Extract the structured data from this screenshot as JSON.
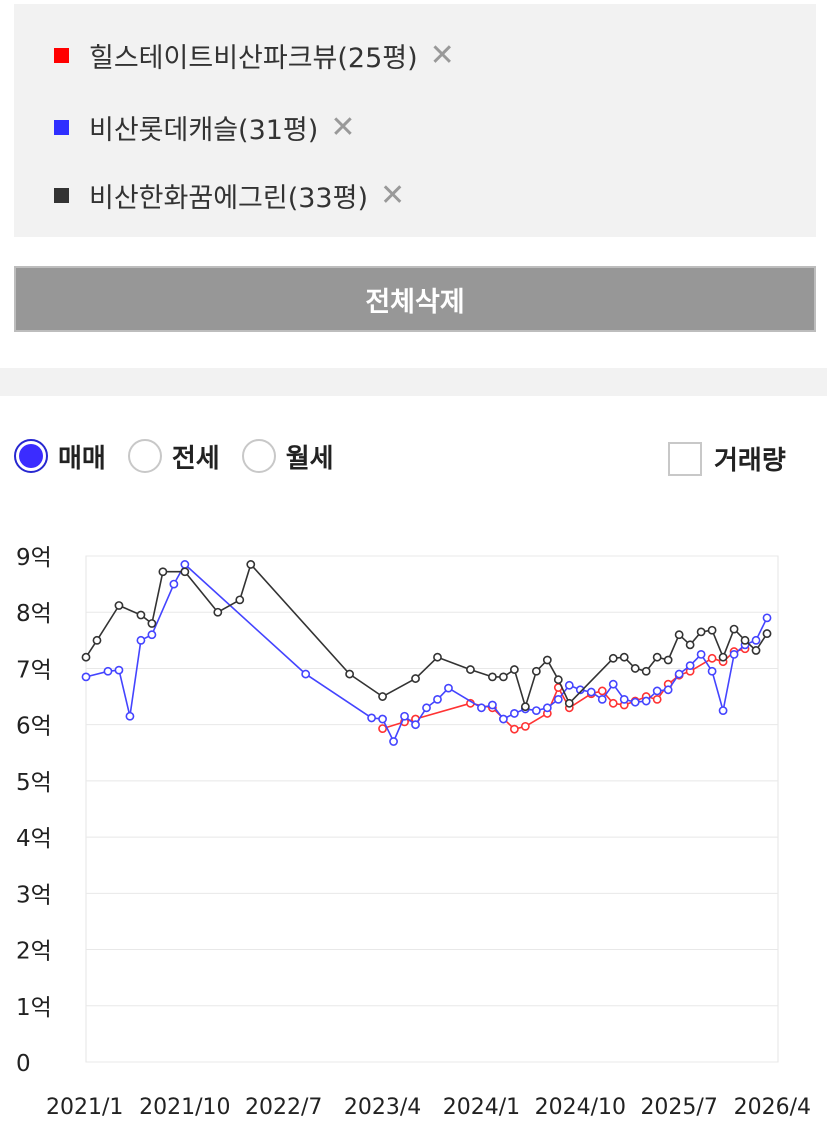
{
  "compare_list": {
    "items": [
      {
        "label": "힐스테이트비산파크뷰(25평)",
        "color": "#ff0000",
        "remove_icon": "close-icon"
      },
      {
        "label": "비산롯데캐슬(31평)",
        "color": "#2f2fff",
        "remove_icon": "close-icon"
      },
      {
        "label": "비산한화꿈에그린(33평)",
        "color": "#333333",
        "remove_icon": "close-icon"
      }
    ],
    "remove_glyph": "✕",
    "clear_all_label": "전체삭제"
  },
  "filters": {
    "deal_types": [
      {
        "label": "매매",
        "checked": true
      },
      {
        "label": "전세",
        "checked": false
      },
      {
        "label": "월세",
        "checked": false
      }
    ],
    "volume_label": "거래량",
    "volume_checked": false
  },
  "chart_data": {
    "type": "line",
    "y_ticks": [
      "0",
      "1억",
      "2억",
      "3억",
      "4억",
      "5억",
      "6억",
      "7억",
      "8억",
      "9억"
    ],
    "x_ticks": [
      "2021/1",
      "2021/10",
      "2022/7",
      "2023/4",
      "2024/1",
      "2024/10",
      "2025/7",
      "2026/4"
    ],
    "ylim": [
      0,
      9
    ],
    "y_unit": "억",
    "grid": true,
    "series": [
      {
        "name": "힐스테이트비산파크뷰(25평)",
        "color": "#ff3333",
        "points": [
          [
            "2023/4",
            5.93
          ],
          [
            "2023/6",
            6.05
          ],
          [
            "2023/7",
            6.1
          ],
          [
            "2023/12",
            6.38
          ],
          [
            "2024/2",
            6.3
          ],
          [
            "2024/4",
            5.92
          ],
          [
            "2024/5",
            5.97
          ],
          [
            "2024/7",
            6.2
          ],
          [
            "2024/8",
            6.66
          ],
          [
            "2024/9",
            6.3
          ],
          [
            "2024/11",
            6.55
          ],
          [
            "2024/12",
            6.6
          ],
          [
            "2025/1",
            6.38
          ],
          [
            "2025/2",
            6.35
          ],
          [
            "2025/3",
            6.42
          ],
          [
            "2025/4",
            6.5
          ],
          [
            "2025/5",
            6.45
          ],
          [
            "2025/6",
            6.72
          ],
          [
            "2025/7",
            6.88
          ],
          [
            "2025/8",
            6.95
          ],
          [
            "2025/10",
            7.18
          ],
          [
            "2025/11",
            7.12
          ],
          [
            "2025/12",
            7.3
          ],
          [
            "2026/1",
            7.35
          ]
        ]
      },
      {
        "name": "비산롯데캐슬(31평)",
        "color": "#4444ff",
        "points": [
          [
            "2021/1",
            6.85
          ],
          [
            "2021/3",
            6.95
          ],
          [
            "2021/4",
            6.97
          ],
          [
            "2021/5",
            6.15
          ],
          [
            "2021/6",
            7.5
          ],
          [
            "2021/7",
            7.6
          ],
          [
            "2021/9",
            8.5
          ],
          [
            "2021/10",
            8.85
          ],
          [
            "2022/9",
            6.9
          ],
          [
            "2023/3",
            6.12
          ],
          [
            "2023/4",
            6.1
          ],
          [
            "2023/5",
            5.7
          ],
          [
            "2023/6",
            6.15
          ],
          [
            "2023/7",
            6.0
          ],
          [
            "2023/8",
            6.3
          ],
          [
            "2023/9",
            6.45
          ],
          [
            "2023/10",
            6.65
          ],
          [
            "2024/1",
            6.3
          ],
          [
            "2024/2",
            6.35
          ],
          [
            "2024/3",
            6.1
          ],
          [
            "2024/4",
            6.2
          ],
          [
            "2024/5",
            6.28
          ],
          [
            "2024/6",
            6.25
          ],
          [
            "2024/7",
            6.3
          ],
          [
            "2024/8",
            6.45
          ],
          [
            "2024/9",
            6.7
          ],
          [
            "2024/10",
            6.62
          ],
          [
            "2024/11",
            6.58
          ],
          [
            "2024/12",
            6.45
          ],
          [
            "2025/1",
            6.72
          ],
          [
            "2025/2",
            6.45
          ],
          [
            "2025/3",
            6.4
          ],
          [
            "2025/4",
            6.42
          ],
          [
            "2025/5",
            6.6
          ],
          [
            "2025/6",
            6.62
          ],
          [
            "2025/7",
            6.9
          ],
          [
            "2025/8",
            7.05
          ],
          [
            "2025/9",
            7.25
          ],
          [
            "2025/10",
            6.95
          ],
          [
            "2025/11",
            6.25
          ],
          [
            "2025/12",
            7.25
          ],
          [
            "2026/1",
            7.42
          ],
          [
            "2026/2",
            7.5
          ],
          [
            "2026/3",
            7.9
          ]
        ]
      },
      {
        "name": "비산한화꿈에그린(33평)",
        "color": "#333333",
        "points": [
          [
            "2021/1",
            7.2
          ],
          [
            "2021/2",
            7.5
          ],
          [
            "2021/4",
            8.12
          ],
          [
            "2021/6",
            7.95
          ],
          [
            "2021/7",
            7.8
          ],
          [
            "2021/8",
            8.72
          ],
          [
            "2021/10",
            8.72
          ],
          [
            "2022/1",
            8.0
          ],
          [
            "2022/3",
            8.22
          ],
          [
            "2022/4",
            8.85
          ],
          [
            "2023/1",
            6.9
          ],
          [
            "2023/4",
            6.5
          ],
          [
            "2023/7",
            6.82
          ],
          [
            "2023/9",
            7.2
          ],
          [
            "2023/12",
            6.98
          ],
          [
            "2024/2",
            6.85
          ],
          [
            "2024/3",
            6.85
          ],
          [
            "2024/4",
            6.98
          ],
          [
            "2024/5",
            6.32
          ],
          [
            "2024/6",
            6.95
          ],
          [
            "2024/7",
            7.15
          ],
          [
            "2024/8",
            6.8
          ],
          [
            "2024/9",
            6.38
          ],
          [
            "2025/1",
            7.18
          ],
          [
            "2025/2",
            7.2
          ],
          [
            "2025/3",
            7.0
          ],
          [
            "2025/4",
            6.95
          ],
          [
            "2025/5",
            7.2
          ],
          [
            "2025/6",
            7.15
          ],
          [
            "2025/7",
            7.6
          ],
          [
            "2025/8",
            7.42
          ],
          [
            "2025/9",
            7.65
          ],
          [
            "2025/10",
            7.68
          ],
          [
            "2025/11",
            7.2
          ],
          [
            "2025/12",
            7.7
          ],
          [
            "2026/1",
            7.5
          ],
          [
            "2026/2",
            7.32
          ],
          [
            "2026/3",
            7.62
          ]
        ]
      }
    ]
  }
}
